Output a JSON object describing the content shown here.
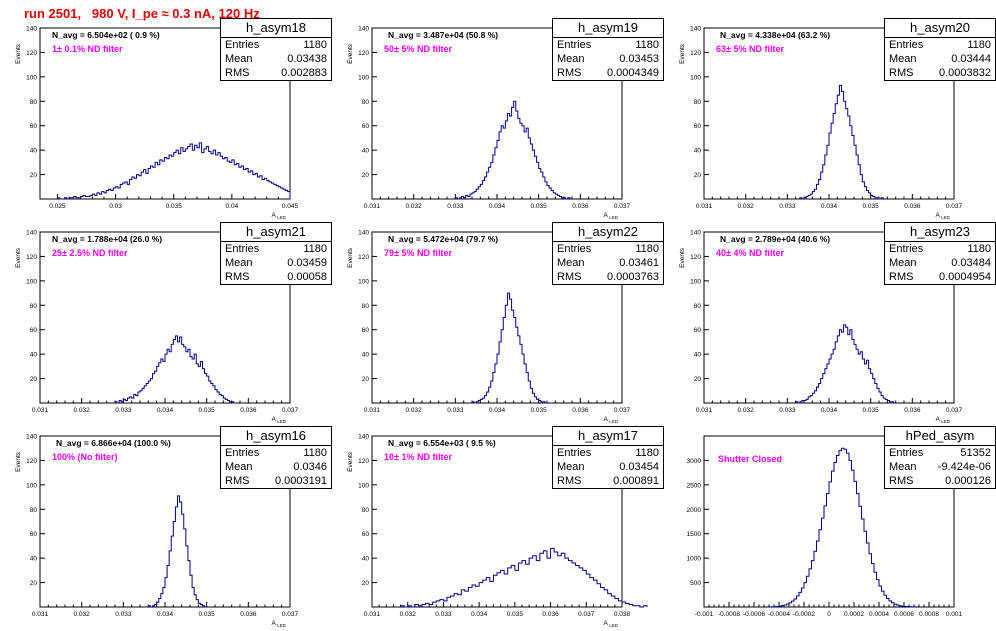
{
  "page_title": "run 2501,   980 V, I_pe ≈ 0.3 nA, 120 Hz",
  "colors": {
    "title": "#e00000",
    "histogram": "#000088",
    "filter_note": "#ee00ee"
  },
  "stat_labels": {
    "entries": "Entries",
    "mean": "Mean",
    "rms": "RMS"
  },
  "chart_data": [
    {
      "type": "histogram",
      "name": "h_asym18",
      "xlabel": "A_LED",
      "ylabel": "Events",
      "xlim": [
        0.0235,
        0.045
      ],
      "ylim": [
        0,
        140
      ],
      "x_ticks": [
        "0.025",
        "0.03",
        "0.035",
        "0.04",
        "0.045"
      ],
      "x_tick_values": [
        0.025,
        0.03,
        0.035,
        0.04,
        0.045
      ],
      "y_ticks": [
        "20",
        "40",
        "60",
        "80",
        "100",
        "120",
        "140"
      ],
      "y_tick_values": [
        20,
        40,
        60,
        80,
        100,
        120,
        140
      ],
      "n_avg": "N_avg = 6.504e+02 ( 0.9 %)",
      "filter": "1± 0.1% ND filter",
      "stats": {
        "entries": "1180",
        "mean": "0.03438",
        "rms": "0.002883"
      },
      "bins": {
        "x0": 0.025,
        "dx": 0.0002,
        "counts": [
          1,
          0,
          0,
          1,
          0,
          1,
          1,
          2,
          1,
          1,
          2,
          3,
          2,
          2,
          3,
          4,
          3,
          5,
          4,
          6,
          5,
          7,
          8,
          7,
          9,
          10,
          9,
          12,
          13,
          14,
          12,
          16,
          18,
          17,
          20,
          19,
          22,
          24,
          21,
          25,
          27,
          26,
          30,
          28,
          32,
          31,
          34,
          33,
          36,
          35,
          38,
          40,
          37,
          42,
          39,
          41,
          43,
          45,
          40,
          44,
          42,
          46,
          38,
          41,
          43,
          39,
          37,
          40,
          36,
          38,
          35,
          33,
          34,
          31,
          30,
          32,
          28,
          29,
          26,
          27,
          24,
          25,
          22,
          23,
          20,
          21,
          18,
          19,
          16,
          17,
          15,
          14,
          13,
          12,
          11,
          10,
          9,
          8,
          7,
          6
        ]
      }
    },
    {
      "type": "histogram",
      "name": "h_asym19",
      "xlabel": "A_LED",
      "ylabel": "Events",
      "xlim": [
        0.031,
        0.037
      ],
      "ylim": [
        0,
        140
      ],
      "x_ticks": [
        "0.031",
        "0.032",
        "0.033",
        "0.034",
        "0.035",
        "0.036",
        "0.037"
      ],
      "x_tick_values": [
        0.031,
        0.032,
        0.033,
        0.034,
        0.035,
        0.036,
        0.037
      ],
      "y_ticks": [
        "20",
        "40",
        "60",
        "80",
        "100",
        "120",
        "140"
      ],
      "y_tick_values": [
        20,
        40,
        60,
        80,
        100,
        120,
        140
      ],
      "n_avg": "N_avg = 3.487e+04 (50.8 %)",
      "filter": "50± 5% ND filter",
      "stats": {
        "entries": "1180",
        "mean": "0.03453",
        "rms": "0.0004349"
      },
      "bins": {
        "x0": 0.033,
        "dx": 5e-05,
        "counts": [
          1,
          0,
          1,
          2,
          1,
          3,
          2,
          4,
          5,
          6,
          8,
          10,
          12,
          15,
          18,
          22,
          26,
          30,
          36,
          42,
          48,
          55,
          60,
          58,
          64,
          70,
          68,
          75,
          80,
          72,
          66,
          62,
          60,
          55,
          58,
          50,
          45,
          40,
          35,
          30,
          25,
          22,
          18,
          14,
          11,
          9,
          7,
          5,
          4,
          3,
          2,
          1,
          1,
          0,
          1
        ]
      }
    },
    {
      "type": "histogram",
      "name": "h_asym20",
      "xlabel": "A_LED",
      "ylabel": "Events",
      "xlim": [
        0.031,
        0.037
      ],
      "ylim": [
        0,
        140
      ],
      "x_ticks": [
        "0.031",
        "0.032",
        "0.033",
        "0.034",
        "0.035",
        "0.036",
        "0.037"
      ],
      "x_tick_values": [
        0.031,
        0.032,
        0.033,
        0.034,
        0.035,
        0.036,
        0.037
      ],
      "y_ticks": [
        "20",
        "40",
        "60",
        "80",
        "100",
        "120",
        "140"
      ],
      "y_tick_values": [
        20,
        40,
        60,
        80,
        100,
        120,
        140
      ],
      "n_avg": "N_avg = 4.338e+04 (63.2 %)",
      "filter": "63± 5% ND filter",
      "stats": {
        "entries": "1180",
        "mean": "0.03444",
        "rms": "0.0003832"
      },
      "bins": {
        "x0": 0.0333,
        "dx": 5e-05,
        "counts": [
          1,
          0,
          1,
          2,
          3,
          4,
          6,
          8,
          12,
          16,
          22,
          28,
          36,
          44,
          54,
          62,
          70,
          78,
          85,
          93,
          88,
          80,
          74,
          68,
          60,
          52,
          44,
          36,
          28,
          20,
          14,
          10,
          7,
          5,
          3,
          2,
          1,
          1,
          0,
          1
        ]
      }
    },
    {
      "type": "histogram",
      "name": "h_asym21",
      "xlabel": "A_LED",
      "ylabel": "Events",
      "xlim": [
        0.031,
        0.037
      ],
      "ylim": [
        0,
        140
      ],
      "x_ticks": [
        "0.031",
        "0.032",
        "0.033",
        "0.034",
        "0.035",
        "0.036",
        "0.037"
      ],
      "x_tick_values": [
        0.031,
        0.032,
        0.033,
        0.034,
        0.035,
        0.036,
        0.037
      ],
      "y_ticks": [
        "20",
        "40",
        "60",
        "80",
        "100",
        "120",
        "140"
      ],
      "y_tick_values": [
        20,
        40,
        60,
        80,
        100,
        120,
        140
      ],
      "n_avg": "N_avg = 1.788e+04 (26.0 %)",
      "filter": "25± 2.5% ND filter",
      "stats": {
        "entries": "1180",
        "mean": "0.03459",
        "rms": "0.00058"
      },
      "bins": {
        "x0": 0.0328,
        "dx": 5e-05,
        "counts": [
          1,
          0,
          2,
          1,
          3,
          2,
          4,
          5,
          4,
          7,
          6,
          9,
          10,
          12,
          14,
          16,
          18,
          20,
          24,
          26,
          30,
          33,
          36,
          34,
          40,
          44,
          42,
          48,
          52,
          55,
          50,
          54,
          48,
          46,
          42,
          44,
          38,
          36,
          40,
          32,
          30,
          34,
          28,
          24,
          22,
          18,
          16,
          14,
          11,
          9,
          7,
          6,
          4,
          3,
          2,
          1,
          1,
          0
        ]
      }
    },
    {
      "type": "histogram",
      "name": "h_asym22",
      "xlabel": "A_LED",
      "ylabel": "Events",
      "xlim": [
        0.031,
        0.037
      ],
      "ylim": [
        0,
        140
      ],
      "x_ticks": [
        "0.031",
        "0.032",
        "0.033",
        "0.034",
        "0.035",
        "0.036",
        "0.037"
      ],
      "x_tick_values": [
        0.031,
        0.032,
        0.033,
        0.034,
        0.035,
        0.036,
        0.037
      ],
      "y_ticks": [
        "20",
        "40",
        "60",
        "80",
        "100",
        "120",
        "140"
      ],
      "y_tick_values": [
        20,
        40,
        60,
        80,
        100,
        120,
        140
      ],
      "n_avg": "N_avg = 5.472e+04 (79.7 %)",
      "filter": "79± 5% ND filter",
      "stats": {
        "entries": "1180",
        "mean": "0.03461",
        "rms": "0.0003763"
      },
      "bins": {
        "x0": 0.0334,
        "dx": 5e-05,
        "counts": [
          1,
          0,
          1,
          2,
          3,
          4,
          6,
          9,
          13,
          18,
          25,
          32,
          40,
          50,
          60,
          70,
          80,
          90,
          85,
          76,
          70,
          62,
          55,
          48,
          40,
          32,
          25,
          18,
          12,
          8,
          5,
          3,
          2,
          1,
          1,
          0
        ]
      }
    },
    {
      "type": "histogram",
      "name": "h_asym23",
      "xlabel": "A_LED",
      "ylabel": "Events",
      "xlim": [
        0.031,
        0.037
      ],
      "ylim": [
        0,
        140
      ],
      "x_ticks": [
        "0.031",
        "0.032",
        "0.033",
        "0.034",
        "0.035",
        "0.036",
        "0.037"
      ],
      "x_tick_values": [
        0.031,
        0.032,
        0.033,
        0.034,
        0.035,
        0.036,
        0.037
      ],
      "y_ticks": [
        "20",
        "40",
        "60",
        "80",
        "100",
        "120",
        "140"
      ],
      "y_tick_values": [
        20,
        40,
        60,
        80,
        100,
        120,
        140
      ],
      "n_avg": "N_avg = 2.789e+04 (40.6 %)",
      "filter": "40± 4% ND filter",
      "stats": {
        "entries": "1180",
        "mean": "0.03484",
        "rms": "0.0004954"
      },
      "bins": {
        "x0": 0.0332,
        "dx": 5e-05,
        "counts": [
          1,
          0,
          1,
          2,
          2,
          3,
          5,
          6,
          8,
          10,
          13,
          16,
          20,
          24,
          28,
          32,
          36,
          40,
          44,
          50,
          55,
          60,
          58,
          64,
          62,
          56,
          60,
          52,
          48,
          44,
          40,
          42,
          36,
          32,
          35,
          28,
          24,
          20,
          16,
          12,
          9,
          6,
          4,
          3,
          2,
          1,
          1,
          0
        ]
      }
    },
    {
      "type": "histogram",
      "name": "h_asym16",
      "xlabel": "A_LED",
      "ylabel": "Events",
      "xlim": [
        0.031,
        0.037
      ],
      "ylim": [
        0,
        140
      ],
      "x_ticks": [
        "0.031",
        "0.032",
        "0.033",
        "0.034",
        "0.035",
        "0.036",
        "0.037"
      ],
      "x_tick_values": [
        0.031,
        0.032,
        0.033,
        0.034,
        0.035,
        0.036,
        0.037
      ],
      "y_ticks": [
        "20",
        "40",
        "60",
        "80",
        "100",
        "120",
        "140"
      ],
      "y_tick_values": [
        20,
        40,
        60,
        80,
        100,
        120,
        140
      ],
      "n_avg": "N_avg = 6.866e+04 (100.0 %)",
      "filter": "100% (No filter)",
      "stats": {
        "entries": "1180",
        "mean": "0.0346",
        "rms": "0.0003191"
      },
      "bins": {
        "x0": 0.0336,
        "dx": 5e-05,
        "counts": [
          1,
          0,
          1,
          2,
          4,
          7,
          11,
          16,
          24,
          34,
          46,
          58,
          70,
          82,
          91,
          86,
          76,
          64,
          50,
          38,
          26,
          16,
          10,
          6,
          3,
          2,
          1,
          0
        ]
      }
    },
    {
      "type": "histogram",
      "name": "h_asym17",
      "xlabel": "A_LED",
      "ylabel": "Events",
      "xlim": [
        0.031,
        0.038
      ],
      "ylim": [
        0,
        140
      ],
      "x_ticks": [
        "0.031",
        "0.032",
        "0.033",
        "0.034",
        "0.035",
        "0.036",
        "0.037",
        "0.038"
      ],
      "x_tick_values": [
        0.031,
        0.032,
        0.033,
        0.034,
        0.035,
        0.036,
        0.037,
        0.038
      ],
      "y_ticks": [
        "20",
        "40",
        "60",
        "80",
        "100",
        "120",
        "140"
      ],
      "y_tick_values": [
        20,
        40,
        60,
        80,
        100,
        120,
        140
      ],
      "n_avg": "N_avg = 6.554e+03 ( 9.5 %)",
      "filter": "10± 1% ND filter",
      "stats": {
        "entries": "1180",
        "mean": "0.03454",
        "rms": "0.000891"
      },
      "bins": {
        "x0": 0.0318,
        "dx": 0.0001,
        "counts": [
          1,
          0,
          1,
          0,
          2,
          1,
          2,
          3,
          2,
          4,
          5,
          6,
          5,
          8,
          9,
          11,
          10,
          14,
          13,
          16,
          18,
          17,
          20,
          22,
          24,
          21,
          26,
          28,
          30,
          27,
          32,
          34,
          30,
          36,
          38,
          35,
          40,
          42,
          38,
          44,
          46,
          40,
          48,
          45,
          42,
          44,
          40,
          38,
          36,
          34,
          32,
          30,
          27,
          24,
          22,
          19,
          16,
          14,
          11,
          9,
          7,
          5,
          4,
          3,
          2,
          1,
          1,
          0,
          1
        ]
      }
    },
    {
      "type": "histogram",
      "name": "hPed_asym",
      "xlabel": "",
      "ylabel": "",
      "xlim": [
        -0.001,
        0.001
      ],
      "ylim": [
        0,
        3500
      ],
      "x_ticks": [
        "-0.001",
        "-0.0008",
        "-0.0006",
        "-0.0004",
        "-0.0002",
        "0",
        "0.0002",
        "0.0004",
        "0.0006",
        "0.0008",
        "0.001"
      ],
      "x_tick_values": [
        -0.001,
        -0.0008,
        -0.0006,
        -0.0004,
        -0.0002,
        0,
        0.0002,
        0.0004,
        0.0006,
        0.0008,
        0.001
      ],
      "y_ticks": [
        "500",
        "1000",
        "1500",
        "2000",
        "2500",
        "3000"
      ],
      "y_tick_values": [
        500,
        1000,
        1500,
        2000,
        2500,
        3000
      ],
      "n_avg": "",
      "filter": "Shutter Closed",
      "stats": {
        "entries": "51352",
        "mean": "-9.424e-06",
        "rms": "0.000126"
      },
      "bins": {
        "x0": -0.0005,
        "dx": 2e-05,
        "counts": [
          2,
          3,
          5,
          8,
          12,
          18,
          28,
          42,
          60,
          85,
          120,
          165,
          225,
          300,
          390,
          500,
          630,
          780,
          950,
          1140,
          1350,
          1580,
          1820,
          2070,
          2320,
          2560,
          2780,
          2960,
          3100,
          3200,
          3250,
          3230,
          3150,
          3000,
          2800,
          2570,
          2320,
          2060,
          1800,
          1550,
          1310,
          1090,
          890,
          710,
          560,
          430,
          325,
          240,
          175,
          125,
          88,
          60,
          40,
          26,
          17,
          11,
          7,
          4,
          3,
          2
        ]
      }
    }
  ]
}
